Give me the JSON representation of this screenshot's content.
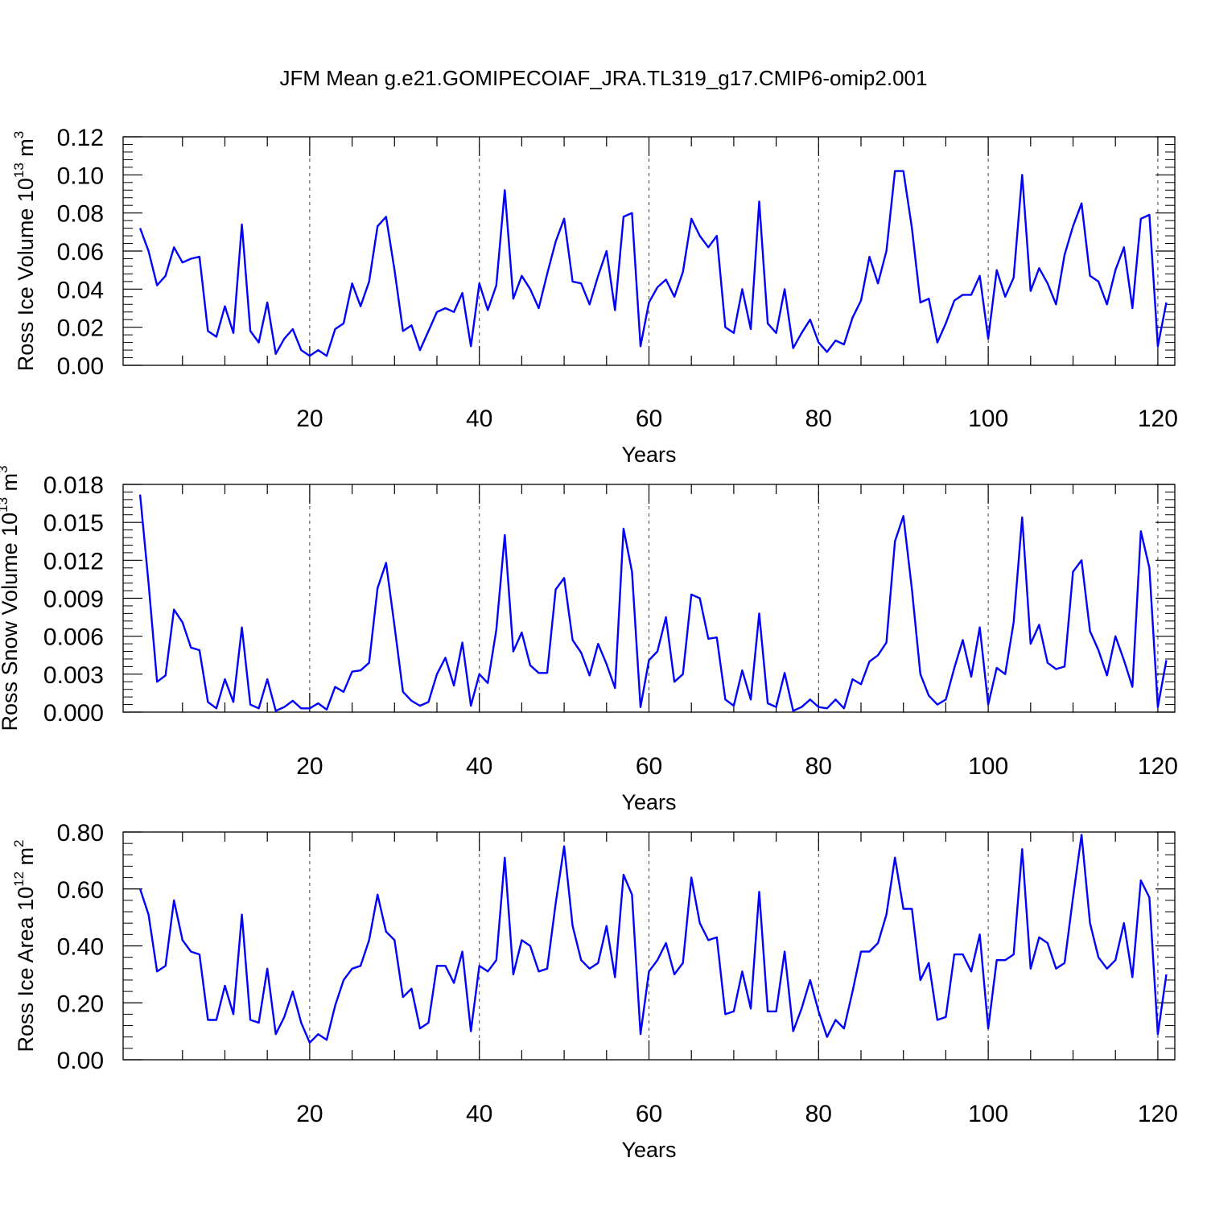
{
  "title": "JFM Mean g.e21.GOMIPECOIAF_JRA.TL319_g17.CMIP6-omip2.001",
  "chart_data": [
    {
      "type": "line",
      "title": "JFM Mean g.e21.GOMIPECOIAF_JRA.TL319_g17.CMIP6-omip2.001",
      "xlabel": "Years",
      "ylabel": "Ross Ice Volume 10",
      "ylabel_exp": "13",
      "ylabel_unit": "m",
      "ylabel_unit_exp": "3",
      "xlim": [
        -2,
        122
      ],
      "ylim": [
        0,
        0.12
      ],
      "xticks": [
        "20",
        "40",
        "60",
        "80",
        "100",
        "120"
      ],
      "yticks": [
        "0.00",
        "0.02",
        "0.04",
        "0.06",
        "0.08",
        "0.10",
        "0.12"
      ],
      "series_color": "#0000ff",
      "series": [
        {
          "name": "Ross Ice Volume",
          "x_start": 0,
          "values": [
            0.072,
            0.06,
            0.042,
            0.047,
            0.062,
            0.054,
            0.056,
            0.057,
            0.018,
            0.015,
            0.031,
            0.017,
            0.074,
            0.018,
            0.012,
            0.033,
            0.006,
            0.014,
            0.019,
            0.008,
            0.005,
            0.008,
            0.005,
            0.019,
            0.022,
            0.043,
            0.031,
            0.044,
            0.073,
            0.078,
            0.05,
            0.018,
            0.021,
            0.008,
            0.018,
            0.028,
            0.03,
            0.028,
            0.038,
            0.01,
            0.043,
            0.029,
            0.042,
            0.092,
            0.035,
            0.047,
            0.04,
            0.03,
            0.048,
            0.065,
            0.077,
            0.044,
            0.043,
            0.032,
            0.047,
            0.06,
            0.029,
            0.078,
            0.08,
            0.01,
            0.033,
            0.041,
            0.045,
            0.036,
            0.049,
            0.077,
            0.068,
            0.062,
            0.068,
            0.02,
            0.017,
            0.04,
            0.019,
            0.086,
            0.022,
            0.017,
            0.04,
            0.009,
            0.017,
            0.024,
            0.012,
            0.007,
            0.013,
            0.011,
            0.025,
            0.034,
            0.057,
            0.043,
            0.06,
            0.102,
            0.102,
            0.072,
            0.033,
            0.035,
            0.012,
            0.022,
            0.034,
            0.037,
            0.037,
            0.047,
            0.014,
            0.05,
            0.036,
            0.046,
            0.1,
            0.039,
            0.051,
            0.043,
            0.032,
            0.058,
            0.073,
            0.085,
            0.047,
            0.044,
            0.032,
            0.05,
            0.062,
            0.03,
            0.077,
            0.079,
            0.01,
            0.033
          ]
        }
      ]
    },
    {
      "type": "line",
      "xlabel": "Years",
      "ylabel": "Ross Snow Volume 10",
      "ylabel_exp": "13",
      "ylabel_unit": "m",
      "ylabel_unit_exp": "3",
      "xlim": [
        -2,
        122
      ],
      "ylim": [
        0,
        0.018
      ],
      "xticks": [
        "20",
        "40",
        "60",
        "80",
        "100",
        "120"
      ],
      "yticks": [
        "0.000",
        "0.003",
        "0.006",
        "0.009",
        "0.012",
        "0.015",
        "0.018"
      ],
      "series_color": "#0000ff",
      "series": [
        {
          "name": "Ross Snow Volume",
          "x_start": 0,
          "values": [
            0.0172,
            0.0102,
            0.0024,
            0.0029,
            0.0081,
            0.0071,
            0.0051,
            0.0049,
            0.0008,
            0.0003,
            0.0026,
            0.0008,
            0.0067,
            0.0006,
            0.0003,
            0.0026,
            0.0001,
            0.0004,
            0.0009,
            0.0003,
            0.0003,
            0.0007,
            0.0002,
            0.002,
            0.0016,
            0.0032,
            0.0033,
            0.0039,
            0.0098,
            0.0118,
            0.0068,
            0.0016,
            0.0009,
            0.0005,
            0.0008,
            0.003,
            0.0043,
            0.0021,
            0.0055,
            0.0005,
            0.003,
            0.0023,
            0.0065,
            0.014,
            0.0048,
            0.0063,
            0.0037,
            0.0031,
            0.0031,
            0.0097,
            0.0106,
            0.0057,
            0.0047,
            0.0029,
            0.0054,
            0.0038,
            0.0019,
            0.0145,
            0.0111,
            0.0004,
            0.0041,
            0.0048,
            0.0075,
            0.0024,
            0.003,
            0.0093,
            0.009,
            0.0058,
            0.0059,
            0.001,
            0.0005,
            0.0033,
            0.001,
            0.0078,
            0.0007,
            0.0004,
            0.0031,
            0.0001,
            0.0004,
            0.001,
            0.0004,
            0.0003,
            0.001,
            0.0003,
            0.0026,
            0.0022,
            0.004,
            0.0045,
            0.0055,
            0.0135,
            0.0155,
            0.0097,
            0.003,
            0.0013,
            0.0006,
            0.001,
            0.0035,
            0.0057,
            0.0028,
            0.0067,
            0.0006,
            0.0035,
            0.003,
            0.0071,
            0.0154,
            0.0054,
            0.0069,
            0.0039,
            0.0034,
            0.0036,
            0.0111,
            0.012,
            0.0064,
            0.0049,
            0.0029,
            0.006,
            0.0041,
            0.002,
            0.0143,
            0.0114,
            0.0004,
            0.0041
          ]
        }
      ]
    },
    {
      "type": "line",
      "xlabel": "Years",
      "ylabel": "Ross Ice Area 10",
      "ylabel_exp": "12",
      "ylabel_unit": "m",
      "ylabel_unit_exp": "2",
      "xlim": [
        -2,
        122
      ],
      "ylim": [
        0,
        0.8
      ],
      "xticks": [
        "20",
        "40",
        "60",
        "80",
        "100",
        "120"
      ],
      "yticks": [
        "0.00",
        "0.20",
        "0.40",
        "0.60",
        "0.80"
      ],
      "series_color": "#0000ff",
      "series": [
        {
          "name": "Ross Ice Area",
          "x_start": 0,
          "values": [
            0.6,
            0.51,
            0.31,
            0.33,
            0.56,
            0.42,
            0.38,
            0.37,
            0.14,
            0.14,
            0.26,
            0.16,
            0.51,
            0.14,
            0.13,
            0.32,
            0.09,
            0.15,
            0.24,
            0.13,
            0.06,
            0.09,
            0.07,
            0.19,
            0.28,
            0.32,
            0.33,
            0.42,
            0.58,
            0.45,
            0.42,
            0.22,
            0.25,
            0.11,
            0.13,
            0.33,
            0.33,
            0.27,
            0.38,
            0.1,
            0.33,
            0.31,
            0.35,
            0.71,
            0.3,
            0.42,
            0.4,
            0.31,
            0.32,
            0.55,
            0.75,
            0.47,
            0.35,
            0.32,
            0.34,
            0.47,
            0.29,
            0.65,
            0.58,
            0.09,
            0.31,
            0.35,
            0.41,
            0.3,
            0.34,
            0.64,
            0.48,
            0.42,
            0.43,
            0.16,
            0.17,
            0.31,
            0.18,
            0.59,
            0.17,
            0.17,
            0.38,
            0.1,
            0.18,
            0.28,
            0.17,
            0.08,
            0.14,
            0.11,
            0.24,
            0.38,
            0.38,
            0.41,
            0.51,
            0.71,
            0.53,
            0.53,
            0.28,
            0.34,
            0.14,
            0.15,
            0.37,
            0.37,
            0.31,
            0.44,
            0.11,
            0.35,
            0.35,
            0.37,
            0.74,
            0.32,
            0.43,
            0.41,
            0.32,
            0.34,
            0.57,
            0.79,
            0.48,
            0.36,
            0.32,
            0.35,
            0.48,
            0.29,
            0.63,
            0.57,
            0.09,
            0.3
          ]
        }
      ]
    }
  ]
}
